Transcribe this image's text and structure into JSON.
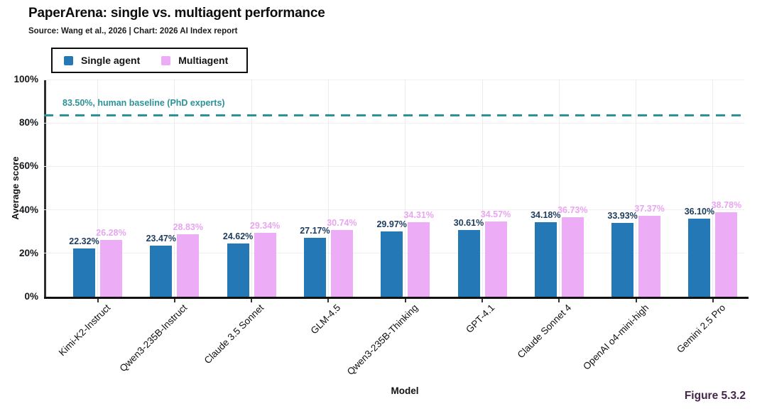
{
  "header": {
    "title": "PaperArena: single vs. multiagent performance",
    "source": "Source: Wang et al., 2026 | Chart: 2026 AI Index report"
  },
  "figure_label": "Figure 5.3.2",
  "colors": {
    "single_agent_bar": "#2478b5",
    "multiagent_bar": "#edacf6",
    "single_agent_label": "#1d3c5e",
    "multiagent_label": "#e8a5f0",
    "baseline": "#2b9298",
    "figure_label": "#44254c"
  },
  "chart_data": {
    "type": "bar",
    "title": "PaperArena: single vs. multiagent performance",
    "xlabel": "Model",
    "ylabel": "Average score",
    "ylim": [
      0,
      100
    ],
    "ytick_values": [
      0,
      20,
      40,
      60,
      80,
      100
    ],
    "ytick_labels": [
      "0%",
      "20%",
      "40%",
      "60%",
      "80%",
      "100%"
    ],
    "grid": true,
    "legend_position": "top-left",
    "categories": [
      "Kimi-K2-Instruct",
      "Qwen3-235B-Instruct",
      "Claude 3.5 Sonnet",
      "GLM-4.5",
      "Qwen3-235B-Thinking",
      "GPT-4.1",
      "Claude Sonnet 4",
      "OpenAI o4-mini-high",
      "Gemini 2.5 Pro"
    ],
    "series": [
      {
        "name": "Single agent",
        "color": "#2478b5",
        "label_color": "#1d3c5e",
        "values": [
          22.32,
          23.47,
          24.62,
          27.17,
          29.97,
          30.61,
          34.18,
          33.93,
          36.1
        ],
        "labels": [
          "22.32%",
          "23.47%",
          "24.62%",
          "27.17%",
          "29.97%",
          "30.61%",
          "34.18%",
          "33.93%",
          "36.10%"
        ]
      },
      {
        "name": "Multiagent",
        "color": "#edacf6",
        "label_color": "#e8a5f0",
        "values": [
          26.28,
          28.83,
          29.34,
          30.74,
          34.31,
          34.57,
          36.73,
          37.37,
          38.78
        ],
        "labels": [
          "26.28%",
          "28.83%",
          "29.34%",
          "30.74%",
          "34.31%",
          "34.57%",
          "36.73%",
          "37.37%",
          "38.78%"
        ]
      }
    ],
    "baseline": {
      "value": 83.5,
      "label": "83.50%, human baseline (PhD experts)"
    }
  }
}
